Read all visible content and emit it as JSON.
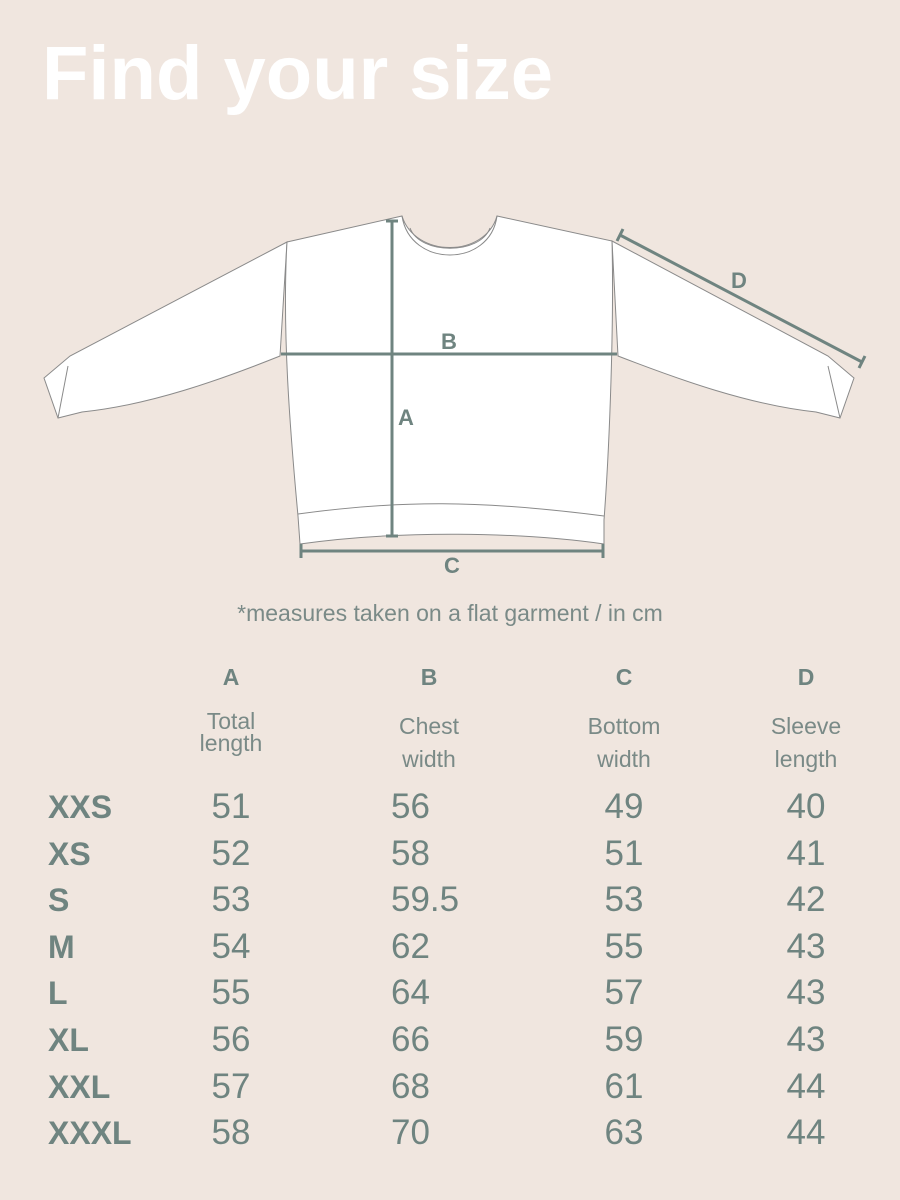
{
  "title": "Find your size",
  "diagram": {
    "labels": {
      "A": "A",
      "B": "B",
      "C": "C",
      "D": "D"
    }
  },
  "note": "*measures taken on a flat garment / in cm",
  "colors": {
    "background": "#f0e6df",
    "accent": "#6f8480",
    "title": "#ffffff"
  },
  "table": {
    "columns": [
      {
        "letter": "A",
        "line1": "Total",
        "line2": "length"
      },
      {
        "letter": "B",
        "line1": "Chest",
        "line2": "width"
      },
      {
        "letter": "C",
        "line1": "Bottom",
        "line2": "width"
      },
      {
        "letter": "D",
        "line1": "Sleeve",
        "line2": "length"
      }
    ],
    "rows": [
      {
        "size": "XXS",
        "values": [
          "51",
          "56",
          "49",
          "40"
        ]
      },
      {
        "size": "XS",
        "values": [
          "52",
          "58",
          "51",
          "41"
        ]
      },
      {
        "size": "S",
        "values": [
          "53",
          "59.5",
          "53",
          "42"
        ]
      },
      {
        "size": "M",
        "values": [
          "54",
          "62",
          "55",
          "43"
        ]
      },
      {
        "size": "L",
        "values": [
          "55",
          "64",
          "57",
          "43"
        ]
      },
      {
        "size": "XL",
        "values": [
          "56",
          "66",
          "59",
          "43"
        ]
      },
      {
        "size": "XXL",
        "values": [
          "57",
          "68",
          "61",
          "44"
        ]
      },
      {
        "size": "XXXL",
        "values": [
          "58",
          "70",
          "63",
          "44"
        ]
      }
    ]
  }
}
